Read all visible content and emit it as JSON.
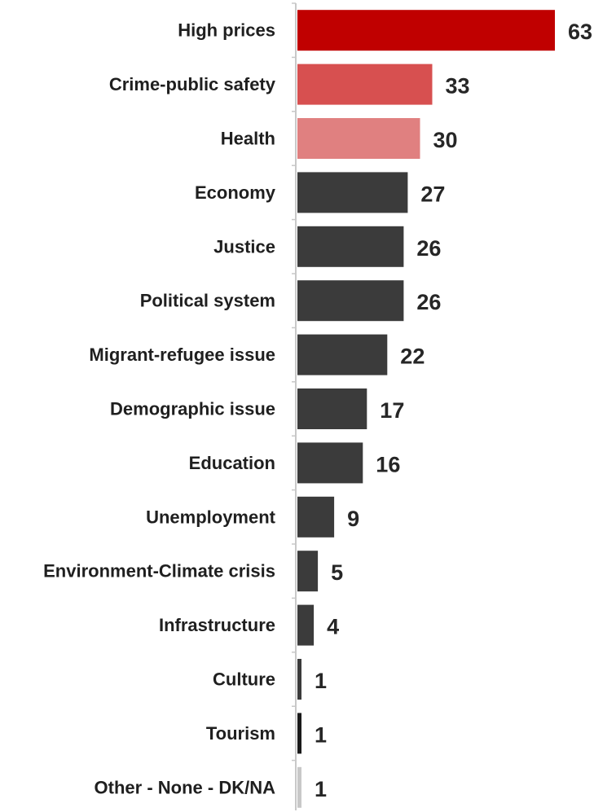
{
  "chart_data": {
    "type": "bar",
    "orientation": "horizontal",
    "categories": [
      "High prices",
      "Crime-public safety",
      "Health",
      "Economy",
      "Justice",
      "Political system",
      "Migrant-refugee issue",
      "Demographic issue",
      "Education",
      "Unemployment",
      "Environment-Climate crisis",
      "Infrastructure",
      "Culture",
      "Tourism",
      "Other - None - DK/NA"
    ],
    "values": [
      63,
      33,
      30,
      27,
      26,
      26,
      22,
      17,
      16,
      9,
      5,
      4,
      1,
      1,
      1
    ],
    "value_labels": [
      "63",
      "33",
      "30",
      "27",
      "26",
      "26",
      "22",
      "17",
      "16",
      "9",
      "5",
      "4",
      "1",
      "1",
      "1"
    ],
    "colors": [
      "#c00000",
      "#d75050",
      "#e08080",
      "#3b3b3b",
      "#3b3b3b",
      "#3b3b3b",
      "#3b3b3b",
      "#3b3b3b",
      "#3b3b3b",
      "#3b3b3b",
      "#3b3b3b",
      "#3b3b3b",
      "#3b3b3b",
      "#1a1a1a",
      "#c8c8c8"
    ],
    "xlim": [
      0,
      63
    ],
    "grid": false,
    "legend": "none",
    "axis_color": "#c8c8c8"
  }
}
